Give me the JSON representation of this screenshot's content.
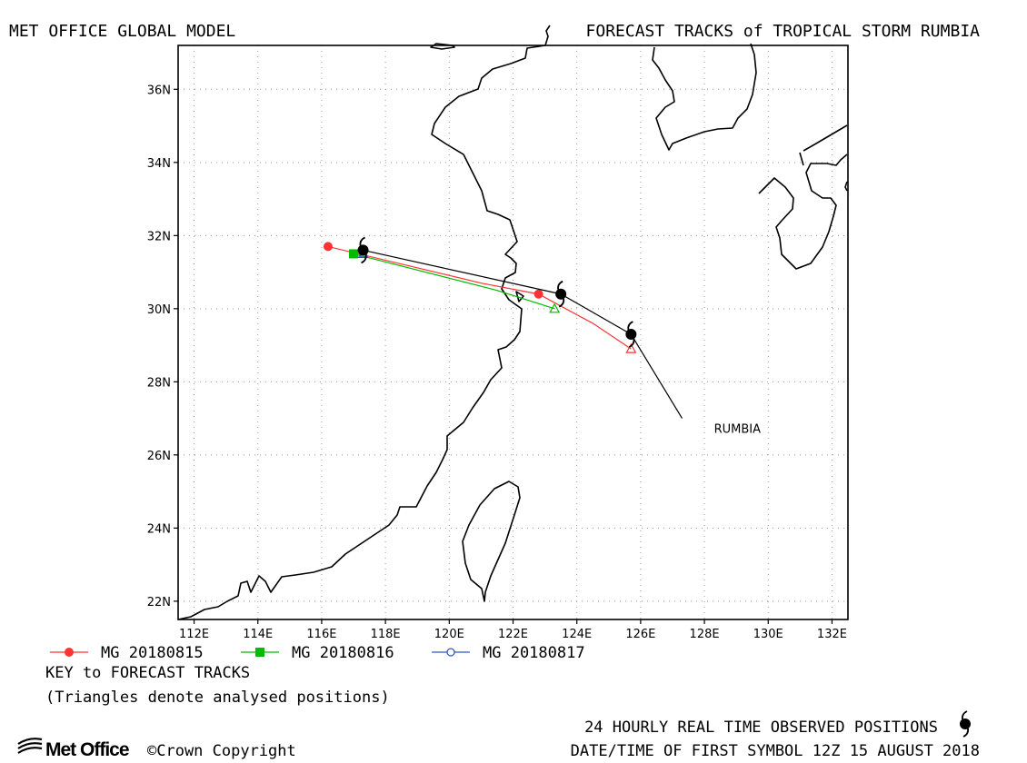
{
  "header": {
    "left_title": "MET OFFICE GLOBAL MODEL",
    "right_title": "FORECAST TRACKS of TROPICAL STORM RUMBIA"
  },
  "map": {
    "lon_range": [
      111.5,
      132.5
    ],
    "lat_range": [
      21.5,
      37.2
    ],
    "lon_ticks": [
      {
        "value": 112,
        "label": "112E"
      },
      {
        "value": 114,
        "label": "114E"
      },
      {
        "value": 116,
        "label": "116E"
      },
      {
        "value": 118,
        "label": "118E"
      },
      {
        "value": 120,
        "label": "120E"
      },
      {
        "value": 122,
        "label": "122E"
      },
      {
        "value": 124,
        "label": "124E"
      },
      {
        "value": 126,
        "label": "126E"
      },
      {
        "value": 128,
        "label": "128E"
      },
      {
        "value": 130,
        "label": "130E"
      },
      {
        "value": 132,
        "label": "132E"
      }
    ],
    "lat_ticks": [
      {
        "value": 22,
        "label": "22N"
      },
      {
        "value": 24,
        "label": "24N"
      },
      {
        "value": 26,
        "label": "26N"
      },
      {
        "value": 28,
        "label": "28N"
      },
      {
        "value": 30,
        "label": "30N"
      },
      {
        "value": 32,
        "label": "32N"
      },
      {
        "value": 34,
        "label": "34N"
      },
      {
        "value": 36,
        "label": "36N"
      }
    ],
    "grid": true,
    "storm_label": {
      "text": "RUMBIA",
      "lon": 128.3,
      "lat": 26.6
    },
    "colors": {
      "observed": "#000000",
      "mg_20180815": "#ff3333",
      "mg_20180816": "#00bb00",
      "mg_20180817": "#3355cc"
    },
    "icon": "tropical-storm-symbol"
  },
  "chart_data": {
    "type": "track-map",
    "observed_track": {
      "name": "RUMBIA",
      "points": [
        [
          125.7,
          29.3
        ],
        [
          123.5,
          30.4
        ],
        [
          117.3,
          31.6
        ]
      ],
      "label_leader_end": [
        127.3,
        27.0
      ]
    },
    "series": [
      {
        "name": "MG 20180815",
        "marker": "filled-circle",
        "points": [
          [
            125.7,
            28.9
          ],
          [
            124.5,
            29.6
          ],
          [
            122.8,
            30.4
          ],
          [
            121.0,
            30.7
          ],
          [
            116.2,
            31.7
          ]
        ]
      },
      {
        "name": "MG 20180816",
        "marker": "filled-square",
        "points": [
          [
            123.3,
            30.0
          ],
          [
            121.5,
            30.5
          ],
          [
            117.0,
            31.5
          ]
        ]
      },
      {
        "name": "MG 20180817",
        "marker": "open-circle",
        "points": [
          [
            117.3,
            31.5
          ]
        ]
      }
    ],
    "analysed_positions": [
      [
        125.7,
        28.9
      ],
      [
        123.3,
        30.0
      ],
      [
        117.3,
        31.5
      ]
    ]
  },
  "legend": {
    "items": [
      {
        "label": "MG 20180815",
        "color": "#ff3333",
        "marker": "filled-circle"
      },
      {
        "label": "MG 20180816",
        "color": "#00bb00",
        "marker": "filled-square"
      },
      {
        "label": "MG 20180817",
        "color": "#3355cc",
        "marker": "open-circle"
      }
    ],
    "key_title": "KEY to FORECAST TRACKS",
    "key_note": "(Triangles denote analysed positions)"
  },
  "footer": {
    "logo_text": "Met Office",
    "copyright": "©Crown Copyright",
    "observed_note": "24 HOURLY REAL TIME OBSERVED POSITIONS",
    "date_note": "DATE/TIME OF FIRST SYMBOL 12Z 15 AUGUST 2018"
  }
}
